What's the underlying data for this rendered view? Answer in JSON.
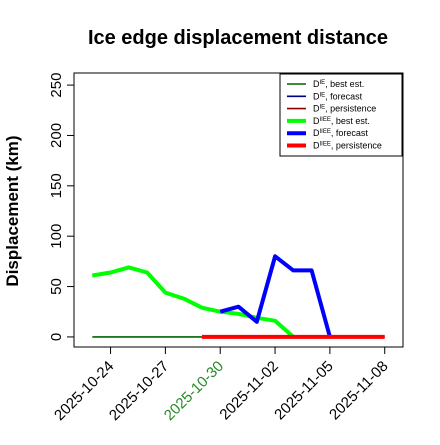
{
  "chart_data": {
    "type": "line",
    "title": "Ice edge displacement distance",
    "xlabel": "",
    "ylabel": "Displacement (km)",
    "x_ticks": [
      "2025-10-24",
      "2025-10-27",
      "2025-10-30",
      "2025-11-02",
      "2025-11-05",
      "2025-11-08"
    ],
    "x_tick_colors": [
      "#000000",
      "#000000",
      "#228B22",
      "#000000",
      "#000000",
      "#000000"
    ],
    "xlim": [
      "2025-10-22",
      "2025-11-09"
    ],
    "y_ticks": [
      0,
      50,
      100,
      150,
      200,
      250
    ],
    "ylim": [
      -10,
      262
    ],
    "grid": false,
    "legend_position": "top-right",
    "legend": [
      {
        "label": "D^IE, best est.",
        "base": "D",
        "sup": "IE",
        "rest": ", best est.",
        "color": "#006400",
        "thick": false
      },
      {
        "label": "D^IE, forecast",
        "base": "D",
        "sup": "IE",
        "rest": ", forecast",
        "color": "#00008B",
        "thick": false
      },
      {
        "label": "D^IE, persistence",
        "base": "D",
        "sup": "IE",
        "rest": ", persistence",
        "color": "#8B0000",
        "thick": false
      },
      {
        "label": "D^IIEE, best est.",
        "base": "D",
        "sup": "IIEE",
        "rest": ", best est.",
        "color": "#00FF00",
        "thick": true
      },
      {
        "label": "D^IIEE, forecast",
        "base": "D",
        "sup": "IIEE",
        "rest": ", forecast",
        "color": "#0000FF",
        "thick": true
      },
      {
        "label": "D^IIEE, persistence",
        "base": "D",
        "sup": "IIEE",
        "rest": ", persistence",
        "color": "#FF0000",
        "thick": true
      }
    ],
    "series": [
      {
        "name": "D^IE, best est.",
        "color": "#006400",
        "thick": false,
        "points": [
          [
            "2025-10-23",
            0
          ],
          [
            "2025-10-24",
            0
          ],
          [
            "2025-10-25",
            0
          ],
          [
            "2025-10-26",
            0
          ],
          [
            "2025-10-27",
            0
          ],
          [
            "2025-10-28",
            0
          ],
          [
            "2025-10-29",
            0
          ],
          [
            "2025-10-30",
            0
          ],
          [
            "2025-10-31",
            0
          ],
          [
            "2025-11-01",
            0
          ],
          [
            "2025-11-02",
            0
          ],
          [
            "2025-11-03",
            0
          ],
          [
            "2025-11-04",
            0
          ],
          [
            "2025-11-05",
            0
          ],
          [
            "2025-11-06",
            0
          ],
          [
            "2025-11-07",
            0
          ],
          [
            "2025-11-08",
            0
          ]
        ]
      },
      {
        "name": "D^IIEE, best est.",
        "color": "#00FF00",
        "thick": true,
        "points": [
          [
            "2025-10-23",
            61
          ],
          [
            "2025-10-24",
            64
          ],
          [
            "2025-10-25",
            69
          ],
          [
            "2025-10-26",
            64
          ],
          [
            "2025-10-27",
            44
          ],
          [
            "2025-10-28",
            38
          ],
          [
            "2025-10-29",
            29
          ],
          [
            "2025-10-30",
            25
          ],
          [
            "2025-10-31",
            23
          ],
          [
            "2025-11-01",
            19
          ],
          [
            "2025-11-02",
            16
          ],
          [
            "2025-11-03",
            0
          ]
        ]
      },
      {
        "name": "D^IIEE, forecast",
        "color": "#0000FF",
        "thick": true,
        "points": [
          [
            "2025-10-30",
            25
          ],
          [
            "2025-10-31",
            30
          ],
          [
            "2025-11-01",
            15
          ],
          [
            "2025-11-02",
            80
          ],
          [
            "2025-11-03",
            66
          ],
          [
            "2025-11-04",
            66
          ],
          [
            "2025-11-05",
            0
          ]
        ]
      },
      {
        "name": "D^IIEE, persistence",
        "color": "#FF0000",
        "thick": true,
        "points": [
          [
            "2025-10-29",
            0
          ],
          [
            "2025-10-30",
            0
          ],
          [
            "2025-10-31",
            0
          ],
          [
            "2025-11-01",
            0
          ],
          [
            "2025-11-02",
            0
          ],
          [
            "2025-11-03",
            0
          ],
          [
            "2025-11-04",
            0
          ],
          [
            "2025-11-05",
            0
          ],
          [
            "2025-11-06",
            0
          ],
          [
            "2025-11-07",
            0
          ],
          [
            "2025-11-08",
            0
          ]
        ]
      }
    ]
  }
}
